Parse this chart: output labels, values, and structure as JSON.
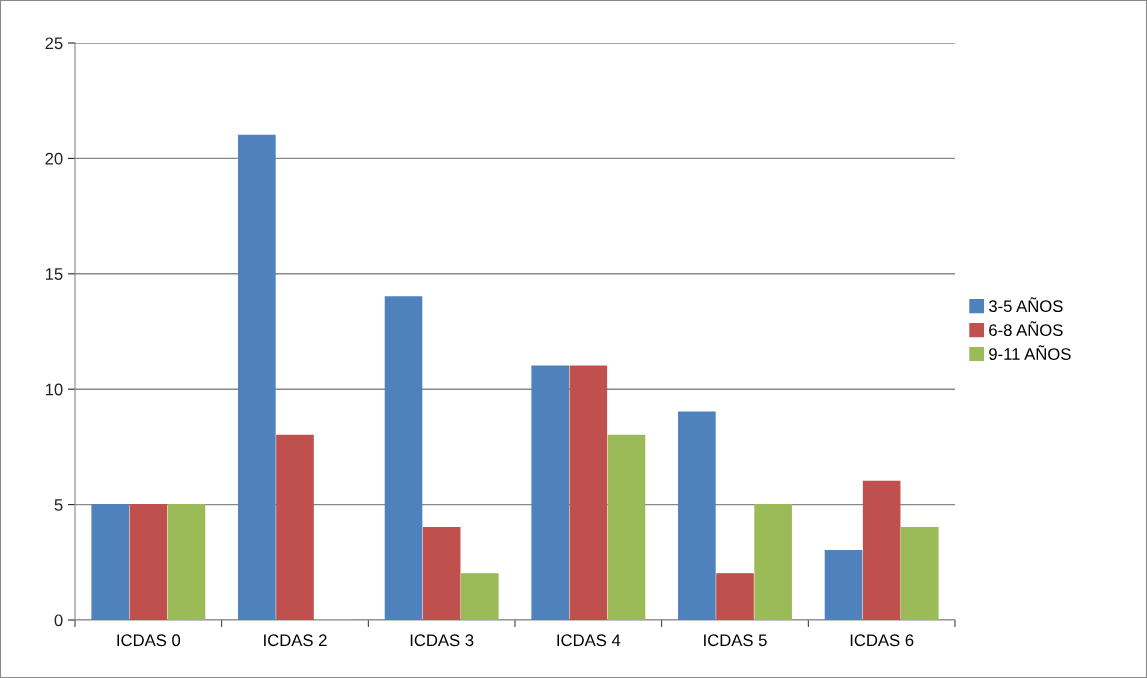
{
  "chart_data": {
    "type": "bar",
    "categories": [
      "ICDAS 0",
      "ICDAS 2",
      "ICDAS 3",
      "ICDAS 4",
      "ICDAS 5",
      "ICDAS 6"
    ],
    "series": [
      {
        "name": "3-5 AÑOS",
        "color": "#4f81bd",
        "values": [
          5,
          21,
          14,
          11,
          9,
          3
        ]
      },
      {
        "name": "6-8 AÑOS",
        "color": "#c0504d",
        "values": [
          5,
          8,
          4,
          11,
          2,
          6
        ]
      },
      {
        "name": "9-11 AÑOS",
        "color": "#9bbb59",
        "values": [
          5,
          0,
          2,
          8,
          5,
          4
        ]
      }
    ],
    "ylim": [
      0,
      25
    ],
    "yticks": [
      0,
      5,
      10,
      15,
      20,
      25
    ],
    "grid": "y",
    "legend": "right"
  }
}
